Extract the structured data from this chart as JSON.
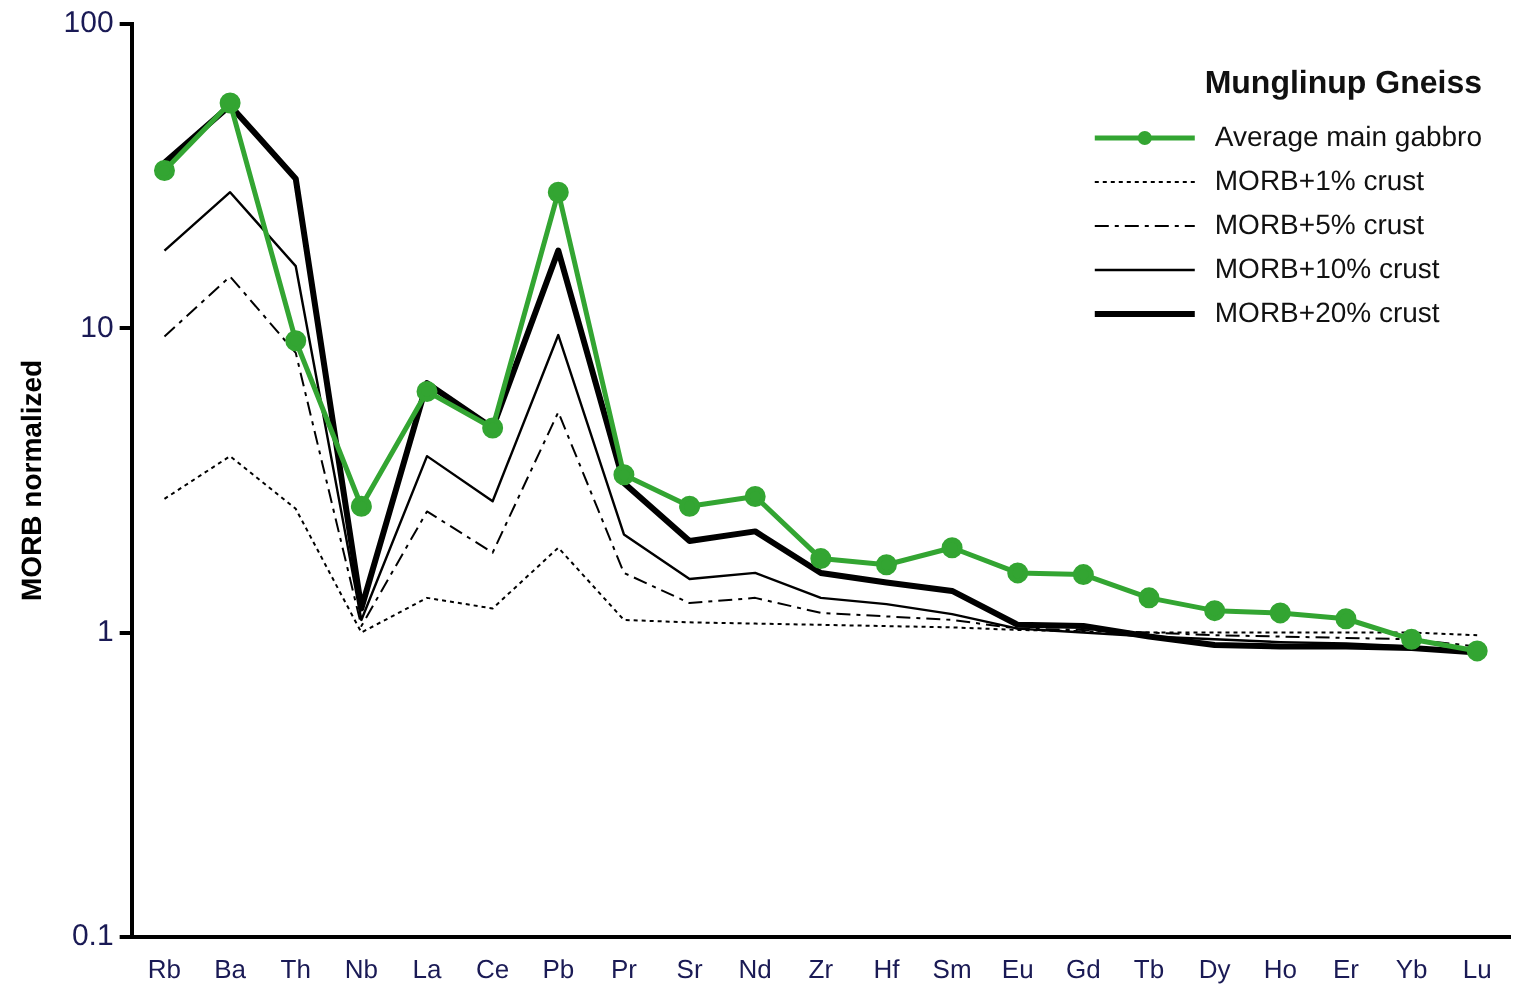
{
  "chart_data": {
    "type": "line",
    "ylabel": "MORB normalized",
    "legend_title": "Munglinup Gneiss",
    "categories": [
      "Rb",
      "Ba",
      "Th",
      "Nb",
      "La",
      "Ce",
      "Pb",
      "Pr",
      "Sr",
      "Nd",
      "Zr",
      "Hf",
      "Sm",
      "Eu",
      "Gd",
      "Tb",
      "Dy",
      "Ho",
      "Er",
      "Yb",
      "Lu"
    ],
    "series": [
      {
        "name": "Average main gabbro",
        "color": "#33a532",
        "marker": "circle",
        "line_style": "solid",
        "values": [
          33,
          55,
          9.1,
          2.6,
          6.2,
          4.7,
          28,
          3.3,
          2.6,
          2.8,
          1.75,
          1.67,
          1.9,
          1.57,
          1.55,
          1.3,
          1.18,
          1.16,
          1.11,
          0.95,
          0.87
        ]
      },
      {
        "name": "MORB+1% crust",
        "color": "#000000",
        "marker": "none",
        "line_style": "dotted",
        "values": [
          2.75,
          3.8,
          2.55,
          1.0,
          1.3,
          1.2,
          1.9,
          1.1,
          1.08,
          1.07,
          1.06,
          1.05,
          1.04,
          1.02,
          1.01,
          1.0,
          1.0,
          1.0,
          1.0,
          1.0,
          0.98
        ]
      },
      {
        "name": "MORB+5% crust",
        "color": "#000000",
        "marker": "none",
        "line_style": "dashed",
        "values": [
          9.4,
          14.8,
          8.3,
          1.05,
          2.5,
          1.83,
          5.3,
          1.57,
          1.25,
          1.3,
          1.16,
          1.13,
          1.1,
          1.03,
          1.02,
          1.0,
          0.98,
          0.97,
          0.96,
          0.95,
          0.9
        ]
      },
      {
        "name": "MORB+10% crust",
        "color": "#000000",
        "marker": "none",
        "line_style": "solid",
        "values": [
          18,
          28,
          16,
          1.1,
          3.8,
          2.7,
          9.5,
          2.1,
          1.5,
          1.57,
          1.3,
          1.24,
          1.15,
          1.03,
          1.0,
          0.97,
          0.95,
          0.93,
          0.92,
          0.9,
          null
        ]
      },
      {
        "name": "MORB+20% crust",
        "color": "#000000",
        "marker": "none",
        "line_style": "solid",
        "values": [
          35,
          54,
          31,
          1.2,
          6.6,
          4.7,
          18,
          3.1,
          2.0,
          2.15,
          1.57,
          1.46,
          1.37,
          1.06,
          1.05,
          0.97,
          0.91,
          0.9,
          0.9,
          0.89,
          0.86
        ]
      }
    ],
    "ylim": [
      0.1,
      100
    ],
    "yticks": [
      0.1,
      1,
      10,
      100
    ],
    "log": true,
    "grid": false,
    "legend": "top right"
  }
}
